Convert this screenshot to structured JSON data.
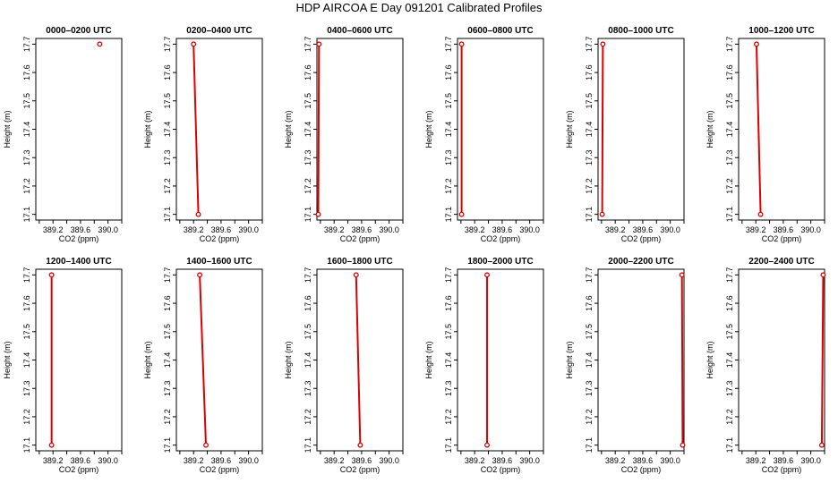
{
  "page": {
    "title": "HDP AIRCOA E  Day 091201  Calibrated Profiles"
  },
  "chart_data": {
    "type": "line",
    "colors": {
      "series": "#dd0000",
      "axes": "#000000"
    },
    "xlabel": "CO2 (ppm)",
    "ylabel": "Height (m)",
    "xlim": [
      388.95,
      390.2
    ],
    "ylim": [
      17.08,
      17.72
    ],
    "x_ticks": [
      "389.2",
      "389.6",
      "390.0"
    ],
    "y_ticks": [
      "17.1",
      "17.2",
      "17.3",
      "17.4",
      "17.5",
      "17.6",
      "17.7"
    ],
    "panels": [
      {
        "title": "0000–0200 UTC",
        "points": [
          {
            "x": 389.88,
            "y": 17.7
          }
        ]
      },
      {
        "title": "0200–0400 UTC",
        "points": [
          {
            "x": 389.2,
            "y": 17.7
          },
          {
            "x": 389.27,
            "y": 17.1
          }
        ]
      },
      {
        "title": "0400–0600 UTC",
        "points": [
          {
            "x": 388.98,
            "y": 17.7
          },
          {
            "x": 388.97,
            "y": 17.1
          }
        ]
      },
      {
        "title": "0600–0800 UTC",
        "points": [
          {
            "x": 389.01,
            "y": 17.7
          },
          {
            "x": 389.01,
            "y": 17.1
          }
        ]
      },
      {
        "title": "0800–1000 UTC",
        "points": [
          {
            "x": 389.02,
            "y": 17.7
          },
          {
            "x": 389.01,
            "y": 17.1
          }
        ]
      },
      {
        "title": "1000–1200 UTC",
        "points": [
          {
            "x": 389.21,
            "y": 17.7
          },
          {
            "x": 389.27,
            "y": 17.1
          }
        ]
      },
      {
        "title": "1200–1400 UTC",
        "points": [
          {
            "x": 389.18,
            "y": 17.7
          },
          {
            "x": 389.18,
            "y": 17.1
          }
        ]
      },
      {
        "title": "1400–1600 UTC",
        "points": [
          {
            "x": 389.29,
            "y": 17.7
          },
          {
            "x": 389.38,
            "y": 17.1
          }
        ]
      },
      {
        "title": "1600–1800 UTC",
        "points": [
          {
            "x": 389.52,
            "y": 17.7
          },
          {
            "x": 389.58,
            "y": 17.1
          }
        ]
      },
      {
        "title": "1800–2000 UTC",
        "points": [
          {
            "x": 389.38,
            "y": 17.7
          },
          {
            "x": 389.38,
            "y": 17.1
          }
        ]
      },
      {
        "title": "2000–2200 UTC",
        "points": [
          {
            "x": 390.17,
            "y": 17.7
          },
          {
            "x": 390.18,
            "y": 17.1
          }
        ]
      },
      {
        "title": "2200–2400 UTC",
        "points": [
          {
            "x": 390.18,
            "y": 17.7
          },
          {
            "x": 390.16,
            "y": 17.1
          }
        ]
      }
    ]
  }
}
